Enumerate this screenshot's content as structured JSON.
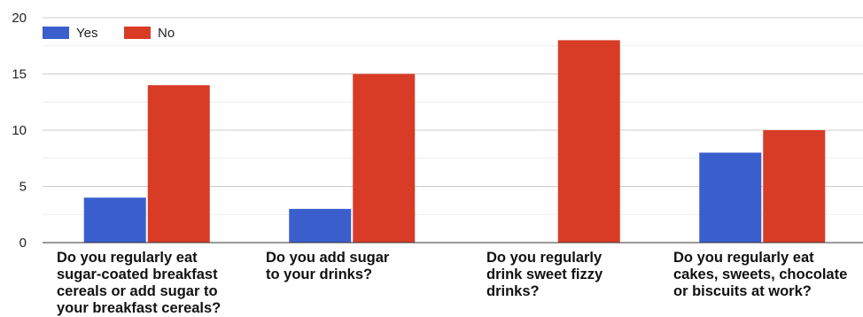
{
  "chart_data": {
    "type": "bar",
    "categories": [
      [
        "Do you regularly eat",
        "sugar-coated breakfast",
        "cereals or add sugar to",
        "your breakfast cereals?"
      ],
      [
        "Do you add sugar",
        "to your drinks?"
      ],
      [
        "Do you regularly",
        "drink sweet fizzy",
        "drinks?"
      ],
      [
        "Do you regularly eat",
        "cakes, sweets, chocolate",
        "or biscuits at work?"
      ]
    ],
    "series": [
      {
        "name": "Yes",
        "color": "#3a5fcd",
        "values": [
          4,
          3,
          0,
          8
        ]
      },
      {
        "name": "No",
        "color": "#d83c26",
        "values": [
          14,
          15,
          18,
          10
        ]
      }
    ],
    "ylim": [
      0,
      20
    ],
    "yticks": [
      "0",
      "5",
      "10",
      "15",
      "20"
    ],
    "grid": true,
    "legend": "top-left"
  }
}
